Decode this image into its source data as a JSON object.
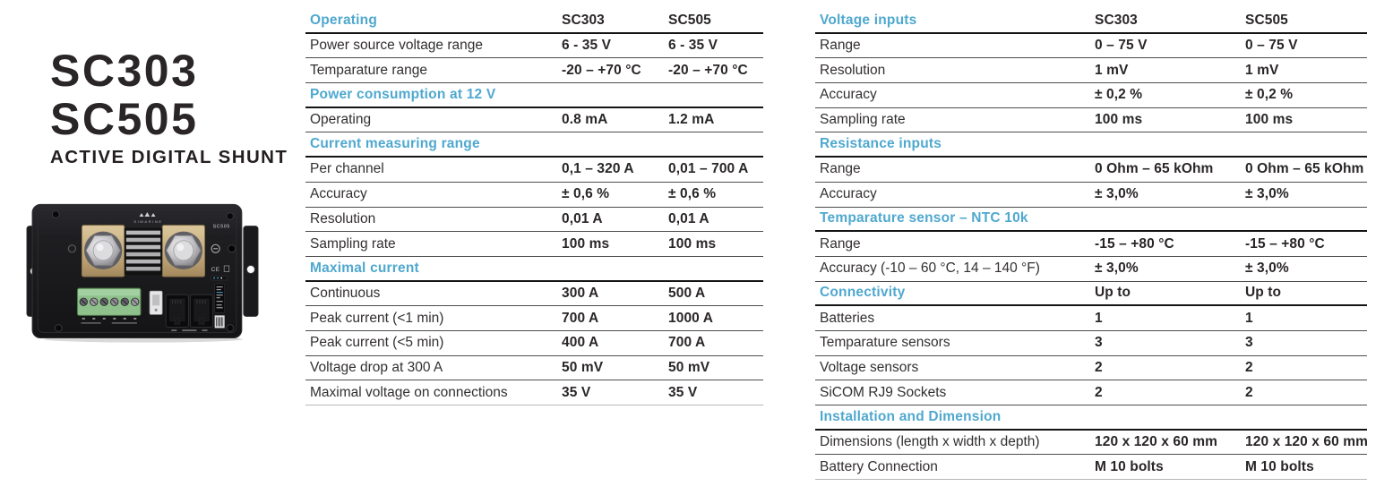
{
  "colors": {
    "accent": "#4fa8cf",
    "text": "#2a2627",
    "thick": "#141414",
    "thin": "#4c4c4c"
  },
  "product": {
    "title_line1": "SC303",
    "title_line2": "SC505",
    "subtitle": "ACTIVE DIGITAL SHUNT",
    "device_brand": "SIMARINE",
    "device_model_label": "SC505",
    "device_ce_label": "CE"
  },
  "tables": [
    {
      "id": "operating-specs",
      "rows": [
        {
          "type": "section",
          "label": "Operating",
          "v1": "SC303",
          "v2": "SC505"
        },
        {
          "type": "data",
          "label": "Power source voltage range",
          "v1": "6 - 35 V",
          "v2": "6 - 35 V"
        },
        {
          "type": "data",
          "label": "Temparature range",
          "v1": "-20 – +70 °C",
          "v2": "-20 – +70 °C"
        },
        {
          "type": "section",
          "label": "Power consumption at 12 V",
          "v1": "",
          "v2": ""
        },
        {
          "type": "data",
          "label": "Operating",
          "v1": "0.8 mA",
          "v2": "1.2 mA"
        },
        {
          "type": "section",
          "label": "Current measuring range",
          "v1": "",
          "v2": ""
        },
        {
          "type": "data",
          "label": "Per channel",
          "v1": "0,1 – 320 A",
          "v2": "0,01 – 700 A"
        },
        {
          "type": "data",
          "label": "Accuracy",
          "v1": "± 0,6 %",
          "v2": "± 0,6 %"
        },
        {
          "type": "data",
          "label": "Resolution",
          "v1": "0,01 A",
          "v2": "0,01 A"
        },
        {
          "type": "data",
          "label": "Sampling rate",
          "v1": "100 ms",
          "v2": "100 ms"
        },
        {
          "type": "section",
          "label": "Maximal current",
          "v1": "",
          "v2": ""
        },
        {
          "type": "data",
          "label": "Continuous",
          "v1": "300 A",
          "v2": "500 A"
        },
        {
          "type": "data",
          "label": "Peak current (<1 min)",
          "v1": "700 A",
          "v2": "1000 A"
        },
        {
          "type": "data",
          "label": "Peak current (<5 min)",
          "v1": "400 A",
          "v2": "700 A"
        },
        {
          "type": "data",
          "label": "Voltage drop at 300 A",
          "v1": "50 mV",
          "v2": "50 mV"
        },
        {
          "type": "data",
          "label": "Maximal voltage on connections",
          "v1": "35 V",
          "v2": "35 V"
        }
      ]
    },
    {
      "id": "io-specs",
      "rows": [
        {
          "type": "section",
          "label": "Voltage inputs",
          "v1": "SC303",
          "v2": "SC505"
        },
        {
          "type": "data",
          "label": "Range",
          "v1": "0 – 75 V",
          "v2": "0 – 75 V"
        },
        {
          "type": "data",
          "label": "Resolution",
          "v1": "1 mV",
          "v2": "1 mV"
        },
        {
          "type": "data",
          "label": "Accuracy",
          "v1": "± 0,2 %",
          "v2": "± 0,2 %"
        },
        {
          "type": "data",
          "label": "Sampling rate",
          "v1": "100 ms",
          "v2": "100 ms"
        },
        {
          "type": "section",
          "label": "Resistance inputs",
          "v1": "",
          "v2": ""
        },
        {
          "type": "data",
          "label": "Range",
          "v1": "0 Ohm – 65 kOhm",
          "v2": "0 Ohm – 65 kOhm"
        },
        {
          "type": "data",
          "label": "Accuracy",
          "v1": "± 3,0%",
          "v2": "± 3,0%"
        },
        {
          "type": "section",
          "label": "Temparature sensor – NTC 10k",
          "v1": "",
          "v2": ""
        },
        {
          "type": "data",
          "label": "Range",
          "v1": "-15 – +80 °C",
          "v2": "-15 – +80 °C"
        },
        {
          "type": "data",
          "label": "Accuracy (-10 – 60 °C, 14 – 140 °F)",
          "v1": "± 3,0%",
          "v2": "± 3,0%"
        },
        {
          "type": "section",
          "label": "Connectivity",
          "v1": "Up to",
          "v2": "Up to"
        },
        {
          "type": "data",
          "label": "Batteries",
          "v1": "1",
          "v2": "1"
        },
        {
          "type": "data",
          "label": "Temparature sensors",
          "v1": "3",
          "v2": "3"
        },
        {
          "type": "data",
          "label": "Voltage sensors",
          "v1": "2",
          "v2": "2"
        },
        {
          "type": "data",
          "label": "SiCOM RJ9 Sockets",
          "v1": "2",
          "v2": "2"
        },
        {
          "type": "section",
          "label": "Installation and Dimension",
          "v1": "",
          "v2": ""
        },
        {
          "type": "data",
          "label": "Dimensions (length x width x depth)",
          "v1": "120 x 120 x 60 mm",
          "v2": "120 x 120 x 60 mm"
        },
        {
          "type": "data",
          "label": "Battery Connection",
          "v1": "M 10 bolts",
          "v2": "M 10 bolts"
        }
      ]
    }
  ]
}
